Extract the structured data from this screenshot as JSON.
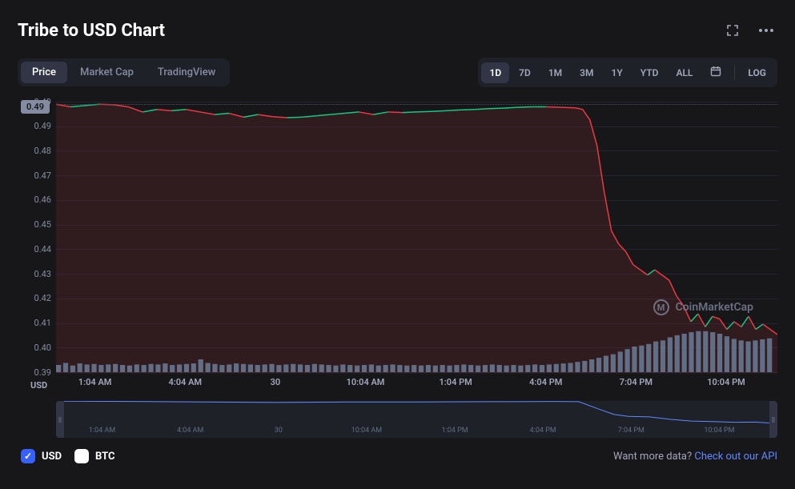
{
  "title": "Tribe to USD Chart",
  "tabs": [
    {
      "label": "Price",
      "active": true
    },
    {
      "label": "Market Cap",
      "active": false
    },
    {
      "label": "TradingView",
      "active": false
    }
  ],
  "ranges": [
    {
      "label": "1D",
      "active": true
    },
    {
      "label": "7D",
      "active": false
    },
    {
      "label": "1M",
      "active": false
    },
    {
      "label": "3M",
      "active": false
    },
    {
      "label": "1Y",
      "active": false
    },
    {
      "label": "YTD",
      "active": false
    },
    {
      "label": "ALL",
      "active": false
    }
  ],
  "log_label": "LOG",
  "y_axis": {
    "ticks": [
      "0.49",
      "0.49",
      "0.48",
      "0.47",
      "0.46",
      "0.45",
      "0.44",
      "0.43",
      "0.42",
      "0.41",
      "0.40",
      "0.39"
    ],
    "min": 0.39,
    "max": 0.495,
    "badge": "0.49",
    "unit_label": "USD"
  },
  "x_axis": {
    "ticks": [
      {
        "label": "1:04 AM",
        "pos": 5.4
      },
      {
        "label": "4:04 AM",
        "pos": 17.9
      },
      {
        "label": "30",
        "pos": 30.4
      },
      {
        "label": "10:04 AM",
        "pos": 42.9
      },
      {
        "label": "1:04 PM",
        "pos": 55.4
      },
      {
        "label": "4:04 PM",
        "pos": 67.9
      },
      {
        "label": "7:04 PM",
        "pos": 80.4
      },
      {
        "label": "10:04 PM",
        "pos": 92.9
      }
    ]
  },
  "minimap_xaxis": [
    {
      "label": "1:04 AM",
      "pos": 5.4
    },
    {
      "label": "4:04 AM",
      "pos": 17.9
    },
    {
      "label": "30",
      "pos": 30.4
    },
    {
      "label": "10:04 AM",
      "pos": 42.9
    },
    {
      "label": "1:04 PM",
      "pos": 55.4
    },
    {
      "label": "4:04 PM",
      "pos": 67.9
    },
    {
      "label": "7:04 PM",
      "pos": 80.4
    },
    {
      "label": "10:04 PM",
      "pos": 92.9
    }
  ],
  "price_series": {
    "type": "line",
    "color_up": "#16c784",
    "color_down": "#ea3943",
    "line_width": 1.5,
    "fill_color": "rgba(234,57,67,0.12)",
    "points": [
      [
        0,
        0.494
      ],
      [
        2,
        0.493
      ],
      [
        4,
        0.4935
      ],
      [
        6,
        0.494
      ],
      [
        8,
        0.4938
      ],
      [
        10,
        0.493
      ],
      [
        12,
        0.491
      ],
      [
        14,
        0.492
      ],
      [
        16,
        0.4915
      ],
      [
        18,
        0.492
      ],
      [
        20,
        0.491
      ],
      [
        22,
        0.49
      ],
      [
        24,
        0.4905
      ],
      [
        26,
        0.489
      ],
      [
        28,
        0.49
      ],
      [
        30,
        0.4892
      ],
      [
        32,
        0.4888
      ],
      [
        34,
        0.489
      ],
      [
        36,
        0.4895
      ],
      [
        38,
        0.49
      ],
      [
        40,
        0.4905
      ],
      [
        42,
        0.491
      ],
      [
        44,
        0.49
      ],
      [
        46,
        0.491
      ],
      [
        48,
        0.4908
      ],
      [
        50,
        0.491
      ],
      [
        52,
        0.4912
      ],
      [
        54,
        0.4915
      ],
      [
        56,
        0.4918
      ],
      [
        58,
        0.492
      ],
      [
        60,
        0.4923
      ],
      [
        62,
        0.4925
      ],
      [
        64,
        0.4928
      ],
      [
        66,
        0.493
      ],
      [
        68,
        0.493
      ],
      [
        70,
        0.4928
      ],
      [
        72,
        0.4926
      ],
      [
        73,
        0.492
      ],
      [
        74,
        0.488
      ],
      [
        75,
        0.478
      ],
      [
        76,
        0.46
      ],
      [
        77,
        0.445
      ],
      [
        78,
        0.44
      ],
      [
        79,
        0.437
      ],
      [
        80,
        0.432
      ],
      [
        81,
        0.43
      ],
      [
        82,
        0.428
      ],
      [
        83,
        0.43
      ],
      [
        84,
        0.428
      ],
      [
        85,
        0.426
      ],
      [
        86,
        0.42
      ],
      [
        87,
        0.416
      ],
      [
        88,
        0.41
      ],
      [
        89,
        0.413
      ],
      [
        90,
        0.408
      ],
      [
        91,
        0.412
      ],
      [
        92,
        0.411
      ],
      [
        93,
        0.407
      ],
      [
        94,
        0.41
      ],
      [
        95,
        0.408
      ],
      [
        96,
        0.412
      ],
      [
        97,
        0.407
      ],
      [
        98,
        0.409
      ],
      [
        99,
        0.407
      ],
      [
        100,
        0.405
      ]
    ]
  },
  "volume_series": {
    "type": "bar",
    "bar_color": "#616e85",
    "max": 1.0,
    "values": [
      0.14,
      0.18,
      0.13,
      0.17,
      0.15,
      0.16,
      0.14,
      0.15,
      0.16,
      0.14,
      0.13,
      0.15,
      0.14,
      0.16,
      0.15,
      0.17,
      0.14,
      0.15,
      0.16,
      0.17,
      0.25,
      0.18,
      0.16,
      0.14,
      0.15,
      0.17,
      0.16,
      0.15,
      0.14,
      0.15,
      0.16,
      0.14,
      0.15,
      0.16,
      0.15,
      0.14,
      0.16,
      0.15,
      0.14,
      0.13,
      0.15,
      0.14,
      0.13,
      0.14,
      0.15,
      0.13,
      0.14,
      0.15,
      0.14,
      0.13,
      0.14,
      0.13,
      0.14,
      0.13,
      0.14,
      0.13,
      0.14,
      0.15,
      0.14,
      0.13,
      0.14,
      0.15,
      0.14,
      0.13,
      0.14,
      0.13,
      0.14,
      0.15,
      0.14,
      0.15,
      0.16,
      0.17,
      0.18,
      0.2,
      0.22,
      0.25,
      0.28,
      0.32,
      0.35,
      0.4,
      0.45,
      0.5,
      0.52,
      0.55,
      0.6,
      0.62,
      0.68,
      0.72,
      0.75,
      0.78,
      0.8,
      0.8,
      0.78,
      0.75,
      0.7,
      0.65,
      0.62,
      0.6,
      0.62,
      0.64,
      0.66
    ]
  },
  "minimap_series": {
    "color": "#6188ff",
    "line_width": 1,
    "points": [
      [
        0,
        0.494
      ],
      [
        10,
        0.493
      ],
      [
        20,
        0.491
      ],
      [
        30,
        0.489
      ],
      [
        40,
        0.491
      ],
      [
        50,
        0.491
      ],
      [
        60,
        0.492
      ],
      [
        70,
        0.493
      ],
      [
        73,
        0.492
      ],
      [
        76,
        0.46
      ],
      [
        78,
        0.44
      ],
      [
        80,
        0.432
      ],
      [
        83,
        0.43
      ],
      [
        86,
        0.42
      ],
      [
        89,
        0.413
      ],
      [
        92,
        0.411
      ],
      [
        95,
        0.408
      ],
      [
        98,
        0.409
      ],
      [
        100,
        0.405
      ]
    ]
  },
  "watermark": "CoinMarketCap",
  "currencies": [
    {
      "label": "USD",
      "checked": true
    },
    {
      "label": "BTC",
      "checked": false
    }
  ],
  "footer": {
    "prompt": "Want more data? ",
    "link": "Check out our API"
  },
  "colors": {
    "bg": "#17171a",
    "grid": "#222531",
    "text_muted": "#858ca2",
    "text": "#ffffff",
    "accent": "#3861fb"
  }
}
